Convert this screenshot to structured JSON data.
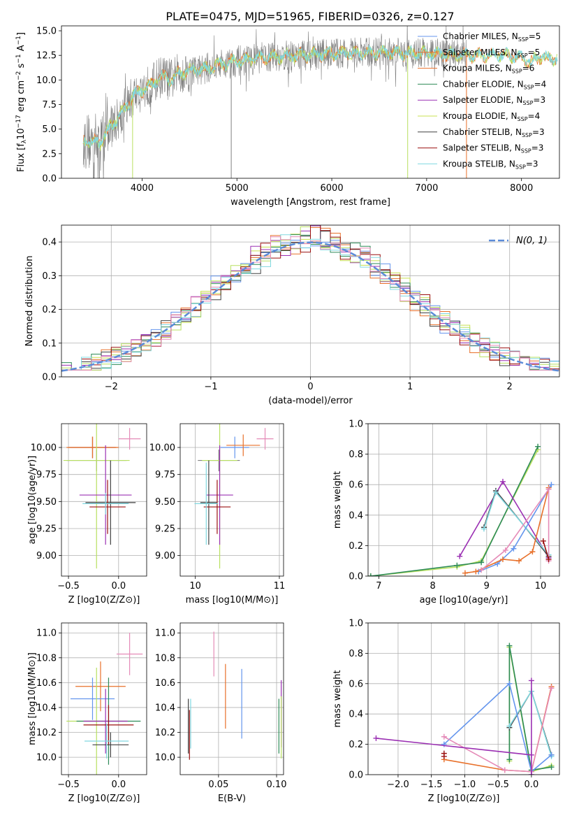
{
  "figure": {
    "title": "PLATE=0475, MJD=51965, FIBERID=0326, z=0.127"
  },
  "colors": {
    "ChMI": "#6495ed",
    "SaMI": "#e8702a",
    "KrMI": "#e8702a",
    "ChEL": "#2e8b57",
    "SaEL": "#9b30b3",
    "KrEL": "#c8e050",
    "ChST": "#404040",
    "SaST": "#9b1010",
    "KrST": "#7fd8e0",
    "pink": "#e58bb8",
    "grey": "#808080",
    "lime": "#b8e060",
    "cyan": "#80d8e0",
    "normal": "#5b8bd8",
    "grid": "#b0b0b0"
  },
  "chart_data": [
    {
      "id": "spectrum",
      "type": "line",
      "xlabel": "wavelength [Angstrom, rest frame]",
      "ylabel": "Flux [f_λ 10^-17 erg cm^-2 s^-1 A^-1]",
      "xlim": [
        3150,
        8400
      ],
      "ylim": [
        0,
        15.5
      ],
      "xticks": [
        4000,
        5000,
        6000,
        7000,
        8000
      ],
      "yticks": [
        0.0,
        2.5,
        5.0,
        7.5,
        10.0,
        12.5,
        15.0
      ],
      "grid": false,
      "legend_position": "right",
      "legend": [
        {
          "label": "Chabrier MILES, N",
          "sub": "SSP",
          "tail": "=5",
          "color": "#6495ed"
        },
        {
          "label": "Salpeter MILES, N",
          "sub": "SSP",
          "tail": "=5",
          "color": "#e8702a"
        },
        {
          "label": "Kroupa MILES, N",
          "sub": "SSP",
          "tail": "=6",
          "color": "#e8702a"
        },
        {
          "label": "Chabrier ELODIE, N",
          "sub": "SSP",
          "tail": "=4",
          "color": "#2e8b57"
        },
        {
          "label": "Salpeter ELODIE, N",
          "sub": "SSP",
          "tail": "=3",
          "color": "#9b30b3"
        },
        {
          "label": "Kroupa ELODIE, N",
          "sub": "SSP",
          "tail": "=4",
          "color": "#c8e050"
        },
        {
          "label": "Chabrier STELIB, N",
          "sub": "SSP",
          "tail": "=3",
          "color": "#404040"
        },
        {
          "label": "Salpeter STELIB, N",
          "sub": "SSP",
          "tail": "=3",
          "color": "#9b1010"
        },
        {
          "label": "Kroupa STELIB, N",
          "sub": "SSP",
          "tail": "=3",
          "color": "#7fd8e0"
        }
      ],
      "continuum": [
        [
          3380,
          3.8
        ],
        [
          3500,
          3.7
        ],
        [
          3560,
          3.6
        ],
        [
          3650,
          5
        ],
        [
          3800,
          6.8
        ],
        [
          3900,
          8.3
        ],
        [
          4000,
          9
        ],
        [
          4100,
          9.5
        ],
        [
          4200,
          10.4
        ],
        [
          4300,
          10
        ],
        [
          4400,
          10.7
        ],
        [
          4500,
          10.9
        ],
        [
          4700,
          11.2
        ],
        [
          4900,
          11.8
        ],
        [
          5100,
          12
        ],
        [
          5300,
          12.3
        ],
        [
          5500,
          12.4
        ],
        [
          5700,
          12.5
        ],
        [
          6000,
          12.7
        ],
        [
          6200,
          12.7
        ],
        [
          6500,
          12.8
        ],
        [
          6800,
          12.7
        ],
        [
          7000,
          12.7
        ],
        [
          7200,
          12.6
        ],
        [
          7500,
          12.5
        ],
        [
          7800,
          12.6
        ],
        [
          8000,
          12.3
        ],
        [
          8100,
          11.8
        ],
        [
          8200,
          12.4
        ],
        [
          8300,
          12.1
        ],
        [
          8380,
          12.2
        ]
      ],
      "observed_range": [
        3380,
        7420
      ],
      "dropouts": [
        3900,
        4940,
        6800,
        7420
      ]
    },
    {
      "id": "residuals",
      "type": "histogram",
      "xlabel": "(data-model)/error",
      "ylabel": "Normed distribution",
      "xlim": [
        -2.5,
        2.5
      ],
      "ylim": [
        0,
        0.45
      ],
      "xticks": [
        -2,
        -1,
        0,
        1,
        2
      ],
      "yticks": [
        0.0,
        0.1,
        0.2,
        0.3,
        0.4
      ],
      "grid": true,
      "legend_position": "top-right",
      "legend": [
        {
          "label": "N(0, 1)",
          "color": "#5b8bd8"
        }
      ],
      "bin_width": 0.1
    },
    {
      "id": "age-vs-Z",
      "type": "scatter",
      "xlabel": "Z [log10(Z/Z⊙)]",
      "ylabel": "age [log10(age/yr)]",
      "xlim": [
        -0.57,
        0.28
      ],
      "ylim": [
        8.81,
        10.22
      ],
      "xticks": [
        -0.5,
        0.0
      ],
      "yticks": [
        9.0,
        9.25,
        9.5,
        9.75,
        10.0
      ],
      "points": [
        {
          "x": 0.11,
          "xerr": 0.11,
          "y": 10.08,
          "yerr": 0.1,
          "color": "pink"
        },
        {
          "x": -0.26,
          "xerr": 0.23,
          "y": 10.0,
          "yerr": 0.1,
          "color": "ChMI"
        },
        {
          "x": -0.26,
          "xerr": 0.24,
          "y": 10.0,
          "yerr": 0.1,
          "color": "SaMI"
        },
        {
          "x": -0.26,
          "xerr": 0.26,
          "y": 10.0,
          "yerr": 0.1,
          "color": "KrMI"
        },
        {
          "x": -0.22,
          "xerr": 0.3,
          "y": 9.88,
          "yerr": 0.1,
          "color": "grey"
        },
        {
          "x": -0.22,
          "xerr": 0.33,
          "y": 9.88,
          "yerr": 1.0,
          "color": "lime"
        },
        {
          "x": -0.13,
          "xerr": 0.26,
          "y": 9.56,
          "yerr": 0.46,
          "color": "SaEL"
        },
        {
          "x": -0.08,
          "xerr": 0.25,
          "y": 9.49,
          "yerr": 0.39,
          "color": "ChST"
        },
        {
          "x": -0.11,
          "xerr": 0.18,
          "y": 9.45,
          "yerr": 0.25,
          "color": "SaST"
        },
        {
          "x": -0.13,
          "xerr": 0.23,
          "y": 9.48,
          "yerr": 0.1,
          "color": "cyan"
        }
      ]
    },
    {
      "id": "age-vs-mass",
      "type": "scatter",
      "xlabel": "mass [log10(M/M⊙)]",
      "ylabel": "",
      "xlim": [
        9.82,
        11.05
      ],
      "ylim": [
        8.81,
        10.22
      ],
      "xticks": [
        10,
        11
      ],
      "yticks": [
        9.0,
        9.25,
        9.5,
        9.75,
        10.0
      ],
      "points": [
        {
          "x": 10.83,
          "xerr": 0.1,
          "y": 10.08,
          "yerr": 0.1,
          "color": "pink"
        },
        {
          "x": 10.47,
          "xerr": 0.17,
          "y": 10.0,
          "yerr": 0.1,
          "color": "ChMI"
        },
        {
          "x": 10.57,
          "xerr": 0.2,
          "y": 10.02,
          "yerr": 0.1,
          "color": "SaMI"
        },
        {
          "x": 10.28,
          "xerr": 0.25,
          "y": 9.88,
          "yerr": 0.1,
          "color": "grey"
        },
        {
          "x": 10.29,
          "xerr": 0.21,
          "y": 9.88,
          "yerr": 1.0,
          "color": "lime"
        },
        {
          "x": 10.29,
          "xerr": 0.16,
          "y": 9.56,
          "yerr": 0.46,
          "color": "SaEL"
        },
        {
          "x": 10.16,
          "xerr": 0.1,
          "y": 9.49,
          "yerr": 0.39,
          "color": "ChST"
        },
        {
          "x": 10.26,
          "xerr": 0.16,
          "y": 9.45,
          "yerr": 0.25,
          "color": "SaST"
        },
        {
          "x": 10.13,
          "xerr": 0.14,
          "y": 9.48,
          "yerr": 0.38,
          "color": "cyan"
        }
      ]
    },
    {
      "id": "mass-weight-vs-age",
      "type": "line",
      "xlabel": "age [log10(age/yr)]",
      "ylabel": "mass weight",
      "xlim": [
        6.8,
        10.35
      ],
      "ylim": [
        0,
        1
      ],
      "xticks": [
        7,
        8,
        9,
        10
      ],
      "yticks": [
        0.0,
        0.2,
        0.4,
        0.6,
        0.8,
        1.0
      ],
      "grid": true,
      "series": [
        {
          "color": "lime",
          "points": [
            [
              6.85,
              0.0
            ],
            [
              8.45,
              0.06
            ],
            [
              8.9,
              0.1
            ],
            [
              9.95,
              0.83
            ]
          ]
        },
        {
          "color": "ChEL",
          "points": [
            [
              6.85,
              0.0
            ],
            [
              8.45,
              0.07
            ],
            [
              8.9,
              0.09
            ],
            [
              9.95,
              0.85
            ]
          ]
        },
        {
          "color": "SaEL",
          "points": [
            [
              8.5,
              0.13
            ],
            [
              9.3,
              0.62
            ],
            [
              10.15,
              0.12
            ]
          ]
        },
        {
          "color": "ChST",
          "points": [
            [
              8.95,
              0.32
            ],
            [
              9.17,
              0.56
            ],
            [
              10.15,
              0.13
            ]
          ]
        },
        {
          "color": "cyan",
          "points": [
            [
              8.95,
              0.31
            ],
            [
              9.17,
              0.55
            ],
            [
              10.15,
              0.14
            ]
          ]
        },
        {
          "color": "ChMI",
          "points": [
            [
              8.85,
              0.03
            ],
            [
              9.2,
              0.08
            ],
            [
              9.5,
              0.18
            ],
            [
              10.2,
              0.6
            ]
          ]
        },
        {
          "color": "SaMI",
          "points": [
            [
              8.6,
              0.02
            ],
            [
              8.8,
              0.03
            ],
            [
              9.3,
              0.11
            ],
            [
              9.6,
              0.1
            ],
            [
              9.85,
              0.16
            ],
            [
              10.15,
              0.58
            ]
          ]
        },
        {
          "color": "pink",
          "points": [
            [
              8.9,
              0.04
            ],
            [
              9.35,
              0.17
            ],
            [
              10.15,
              0.57
            ],
            [
              10.15,
              0.1
            ]
          ]
        },
        {
          "color": "SaST",
          "points": [
            [
              10.05,
              0.23
            ],
            [
              10.15,
              0.11
            ]
          ]
        }
      ]
    },
    {
      "id": "mass-vs-Z",
      "type": "scatter",
      "xlabel": "Z [log10(Z/Z⊙)]",
      "ylabel": "mass [log10(M/M⊙)]",
      "xlim": [
        -0.57,
        0.28
      ],
      "ylim": [
        9.86,
        11.08
      ],
      "xticks": [
        -0.5,
        0.0
      ],
      "yticks": [
        10.0,
        10.2,
        10.4,
        10.6,
        10.8,
        11.0
      ],
      "points": [
        {
          "x": 0.11,
          "xerr": 0.13,
          "y": 10.83,
          "yerr": 0.17,
          "color": "pink"
        },
        {
          "x": -0.18,
          "xerr": 0.25,
          "y": 10.57,
          "yerr": 0.2,
          "color": "SaMI"
        },
        {
          "x": -0.26,
          "xerr": 0.22,
          "y": 10.47,
          "yerr": 0.17,
          "color": "ChMI"
        },
        {
          "x": -0.22,
          "xerr": 0.3,
          "y": 10.29,
          "yerr": 0.43,
          "color": "lime"
        },
        {
          "x": -0.1,
          "xerr": 0.32,
          "y": 10.29,
          "yerr": 0.35,
          "color": "ChEL"
        },
        {
          "x": -0.13,
          "xerr": 0.22,
          "y": 10.29,
          "yerr": 0.26,
          "color": "SaEL"
        },
        {
          "x": -0.1,
          "xerr": 0.25,
          "y": 10.26,
          "yerr": 0.16,
          "color": "SaST"
        },
        {
          "x": -0.08,
          "xerr": 0.18,
          "y": 10.1,
          "yerr": 0.1,
          "color": "ChST"
        },
        {
          "x": -0.12,
          "xerr": 0.22,
          "y": 10.13,
          "yerr": 0.14,
          "color": "cyan"
        }
      ]
    },
    {
      "id": "mass-vs-EBV",
      "type": "scatter",
      "xlabel": "E(B-V)",
      "ylabel": "",
      "xlim": [
        0.017,
        0.106
      ],
      "ylim": [
        9.86,
        11.08
      ],
      "xticks": [
        0.05,
        0.1
      ],
      "yticks": [
        10.0,
        10.2,
        10.4,
        10.6,
        10.8,
        11.0
      ],
      "points": [
        {
          "x": 0.046,
          "y": 10.83,
          "yerr": 0.18,
          "color": "pink"
        },
        {
          "x": 0.056,
          "y": 10.49,
          "yerr": 0.26,
          "color": "SaMI"
        },
        {
          "x": 0.07,
          "y": 10.43,
          "yerr": 0.28,
          "color": "ChMI"
        },
        {
          "x": 0.024,
          "y": 10.25,
          "yerr": 0.22,
          "color": "ChST"
        },
        {
          "x": 0.025,
          "y": 10.18,
          "yerr": 0.2,
          "color": "SaST"
        },
        {
          "x": 0.026,
          "y": 10.27,
          "yerr": 0.2,
          "color": "cyan"
        },
        {
          "x": 0.102,
          "y": 10.25,
          "yerr": 0.22,
          "color": "ChEL"
        },
        {
          "x": 0.104,
          "y": 10.35,
          "yerr": 0.27,
          "color": "SaEL"
        },
        {
          "x": 0.104,
          "y": 10.24,
          "yerr": 0.25,
          "color": "lime"
        }
      ]
    },
    {
      "id": "mass-weight-vs-Z",
      "type": "line",
      "xlabel": "Z [log10(Z/Z⊙)]",
      "ylabel": "mass weight",
      "xlim": [
        -2.45,
        0.42
      ],
      "ylim": [
        0,
        1
      ],
      "xticks": [
        -2.0,
        -1.5,
        -1.0,
        -0.5,
        0.0
      ],
      "yticks": [
        0.0,
        0.2,
        0.4,
        0.6,
        0.8,
        1.0
      ],
      "grid": true,
      "series": [
        {
          "color": "lime",
          "points": [
            [
              -0.33,
              0.09
            ],
            [
              -0.33,
              0.84
            ],
            [
              0.0,
              0.02
            ],
            [
              0.3,
              0.06
            ]
          ]
        },
        {
          "color": "ChEL",
          "points": [
            [
              -0.33,
              0.1
            ],
            [
              -0.33,
              0.85
            ],
            [
              0.0,
              0.03
            ],
            [
              0.3,
              0.05
            ]
          ]
        },
        {
          "color": "ChST",
          "points": [
            [
              -0.33,
              0.31
            ],
            [
              0.0,
              0.55
            ],
            [
              0.3,
              0.13
            ]
          ]
        },
        {
          "color": "cyan",
          "points": [
            [
              -0.33,
              0.32
            ],
            [
              0.0,
              0.55
            ],
            [
              0.3,
              0.12
            ]
          ]
        },
        {
          "color": "ChMI",
          "points": [
            [
              -1.31,
              0.2
            ],
            [
              -0.33,
              0.6
            ],
            [
              0.0,
              0.02
            ],
            [
              0.3,
              0.13
            ]
          ]
        },
        {
          "color": "SaMI",
          "points": [
            [
              -1.31,
              0.1
            ],
            [
              -0.4,
              0.03
            ],
            [
              0.0,
              0.02
            ],
            [
              0.3,
              0.58
            ]
          ]
        },
        {
          "color": "pink",
          "points": [
            [
              -1.31,
              0.25
            ],
            [
              -0.4,
              0.03
            ],
            [
              0.0,
              0.02
            ],
            [
              0.3,
              0.57
            ]
          ]
        },
        {
          "color": "SaEL",
          "points": [
            [
              -2.33,
              0.24
            ],
            [
              0.0,
              0.13
            ],
            [
              0.0,
              0.62
            ],
            [
              0.0,
              0.0
            ]
          ]
        },
        {
          "color": "SaST",
          "points": [
            [
              -1.31,
              0.14
            ],
            [
              -1.31,
              0.12
            ]
          ]
        }
      ]
    }
  ]
}
